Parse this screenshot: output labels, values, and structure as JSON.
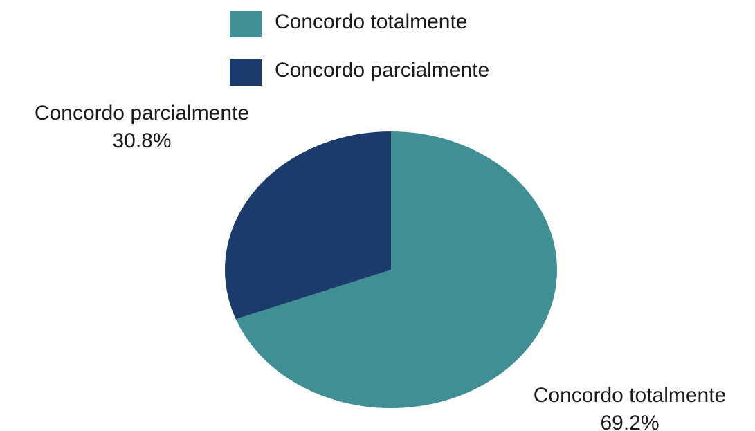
{
  "chart_data": {
    "type": "pie",
    "categories": [
      "Concordo totalmente",
      "Concordo parcialmente"
    ],
    "values": [
      69.2,
      30.8
    ],
    "value_labels": [
      "69.2%",
      "30.8%"
    ],
    "colors": [
      "#3f8f94",
      "#1a3b6c"
    ]
  }
}
